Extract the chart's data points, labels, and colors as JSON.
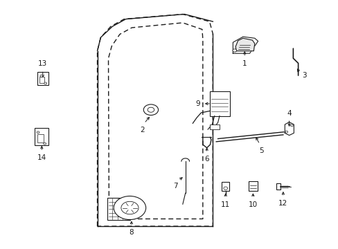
{
  "bg": "#ffffff",
  "lc": "#1a1a1a",
  "fig_w": 4.89,
  "fig_h": 3.6,
  "dpi": 100,
  "label_fs": 7.5,
  "door_outer": {
    "x": [
      0.285,
      0.285,
      0.295,
      0.325,
      0.365,
      0.54,
      0.62,
      0.63,
      0.63,
      0.285
    ],
    "y": [
      0.085,
      0.8,
      0.855,
      0.9,
      0.93,
      0.95,
      0.92,
      0.87,
      0.085,
      0.085
    ]
  },
  "door_inner": {
    "x": [
      0.32,
      0.318,
      0.328,
      0.352,
      0.388,
      0.54,
      0.598,
      0.6,
      0.6,
      0.32
    ],
    "y": [
      0.115,
      0.77,
      0.82,
      0.868,
      0.895,
      0.915,
      0.888,
      0.848,
      0.115,
      0.115
    ]
  }
}
